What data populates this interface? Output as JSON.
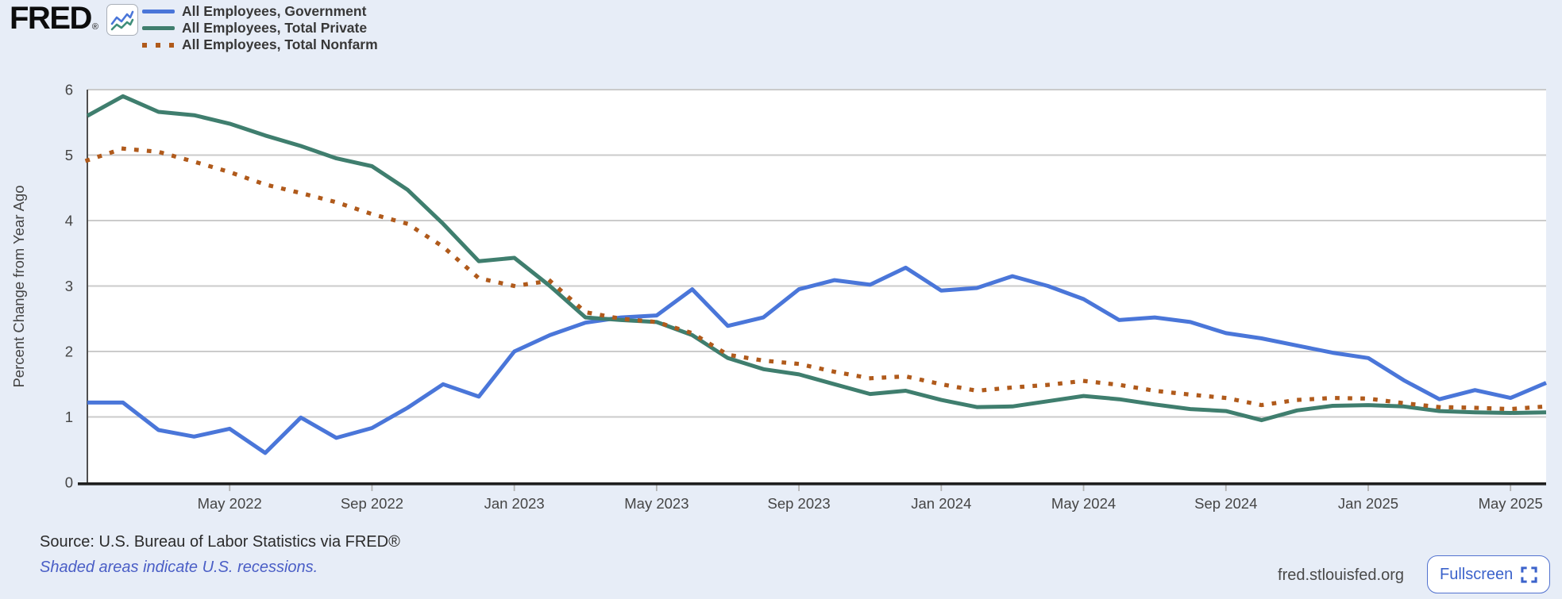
{
  "header": {
    "logo_text": "FRED",
    "logo_registered": "®",
    "legend": [
      {
        "label": "All Employees, Government",
        "color": "#4a76d9",
        "style": "solid"
      },
      {
        "label": "All Employees, Total Private",
        "color": "#3f7e6e",
        "style": "solid"
      },
      {
        "label": "All Employees, Total Nonfarm",
        "color": "#b05a1b",
        "style": "dotted"
      }
    ]
  },
  "chart_data": {
    "type": "line",
    "title": "",
    "ylabel": "Percent Change from Year Ago",
    "ylim": [
      0,
      6
    ],
    "yticks": [
      0,
      1,
      2,
      3,
      4,
      5,
      6
    ],
    "grid": "horizontal",
    "legend_position": "top-left",
    "plot_bg": "#ffffff",
    "page_bg": "#e7edf7",
    "gridline_color": "#cbcbcb",
    "axis_text_color": "#454545",
    "x": [
      "Jan 2022",
      "Feb 2022",
      "Mar 2022",
      "Apr 2022",
      "May 2022",
      "Jun 2022",
      "Jul 2022",
      "Aug 2022",
      "Sep 2022",
      "Oct 2022",
      "Nov 2022",
      "Dec 2022",
      "Jan 2023",
      "Feb 2023",
      "Mar 2023",
      "Apr 2023",
      "May 2023",
      "Jun 2023",
      "Jul 2023",
      "Aug 2023",
      "Sep 2023",
      "Oct 2023",
      "Nov 2023",
      "Dec 2023",
      "Jan 2024",
      "Feb 2024",
      "Mar 2024",
      "Apr 2024",
      "May 2024",
      "Jun 2024",
      "Jul 2024",
      "Aug 2024",
      "Sep 2024",
      "Oct 2024",
      "Nov 2024",
      "Dec 2024",
      "Jan 2025",
      "Feb 2025",
      "Mar 2025",
      "Apr 2025",
      "May 2025",
      "Jun 2025"
    ],
    "x_tick_labels": [
      "May 2022",
      "Sep 2022",
      "Jan 2023",
      "May 2023",
      "Sep 2023",
      "Jan 2024",
      "May 2024",
      "Sep 2024",
      "Jan 2025",
      "May 2025"
    ],
    "x_tick_indices": [
      4,
      8,
      12,
      16,
      20,
      24,
      28,
      32,
      36,
      40
    ],
    "series": [
      {
        "name": "All Employees, Government",
        "color": "#4a76d9",
        "line_style": "solid",
        "values": [
          1.22,
          1.22,
          0.8,
          0.7,
          0.82,
          0.45,
          0.99,
          0.68,
          0.83,
          1.14,
          1.5,
          1.31,
          2.0,
          2.25,
          2.44,
          2.52,
          2.55,
          2.95,
          2.39,
          2.52,
          2.95,
          3.09,
          3.02,
          3.28,
          2.93,
          2.97,
          3.15,
          3.0,
          2.8,
          2.48,
          2.52,
          2.45,
          2.28,
          2.2,
          2.09,
          1.98,
          1.9,
          1.56,
          1.27,
          1.41,
          1.29,
          1.52
        ]
      },
      {
        "name": "All Employees, Total Private",
        "color": "#3f7e6e",
        "line_style": "solid",
        "values": [
          5.6,
          5.9,
          5.66,
          5.61,
          5.48,
          5.3,
          5.14,
          4.95,
          4.83,
          4.47,
          3.95,
          3.38,
          3.43,
          3.0,
          2.52,
          2.48,
          2.45,
          2.25,
          1.9,
          1.73,
          1.65,
          1.5,
          1.35,
          1.4,
          1.26,
          1.15,
          1.16,
          1.24,
          1.32,
          1.27,
          1.19,
          1.12,
          1.09,
          0.95,
          1.1,
          1.17,
          1.18,
          1.16,
          1.09,
          1.07,
          1.06,
          1.07
        ]
      },
      {
        "name": "All Employees, Total Nonfarm",
        "color": "#b05a1b",
        "line_style": "dotted",
        "values": [
          4.92,
          5.1,
          5.05,
          4.9,
          4.74,
          4.55,
          4.42,
          4.28,
          4.1,
          3.95,
          3.6,
          3.12,
          3.0,
          3.08,
          2.6,
          2.5,
          2.45,
          2.28,
          1.95,
          1.86,
          1.81,
          1.69,
          1.59,
          1.62,
          1.5,
          1.4,
          1.45,
          1.49,
          1.55,
          1.49,
          1.4,
          1.34,
          1.29,
          1.18,
          1.26,
          1.29,
          1.28,
          1.21,
          1.15,
          1.14,
          1.12,
          1.16
        ]
      }
    ]
  },
  "footer": {
    "source_text": "Source: U.S. Bureau of Labor Statistics via FRED®",
    "recession_note": "Shaded areas indicate U.S. recessions.",
    "site_url": "fred.stlouisfed.org",
    "fullscreen_label": "Fullscreen"
  }
}
